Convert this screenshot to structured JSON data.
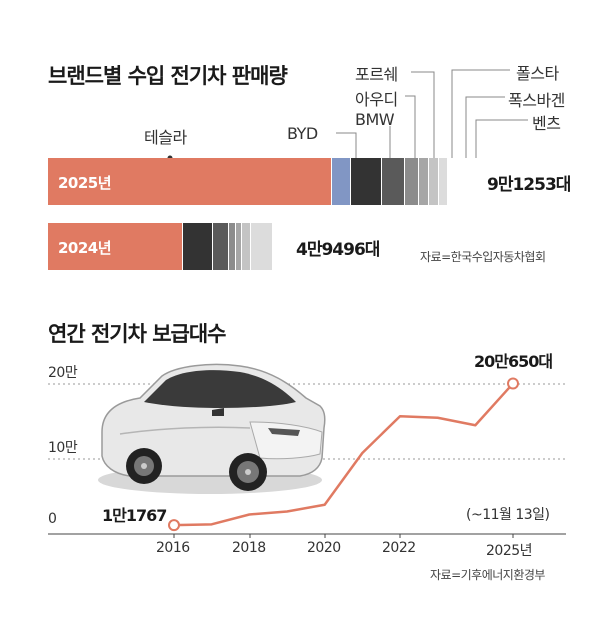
{
  "chart_data": [
    {
      "type": "bar",
      "title": "브랜드별 수입 전기차 판매량",
      "categories": [
        "2025년",
        "2024년"
      ],
      "brand_labels": [
        "테슬라",
        "BYD",
        "BMW",
        "아우디",
        "포르쉐",
        "폭스바겐",
        "폴스타",
        "벤츠"
      ],
      "totals": [
        "9만1253대",
        "4만9496대"
      ],
      "series": [
        {
          "name": "테슬라",
          "color": "#e07a62",
          "values": [
            59916,
            28498
          ]
        },
        {
          "name": "BYD",
          "color": "#8196c4",
          "values": [
            3883,
            0
          ]
        },
        {
          "name": "BMW",
          "color": "#333333",
          "values": [
            6578,
            6360
          ]
        },
        {
          "name": "아우디",
          "color": "#5a5a5a",
          "values": [
            4828,
            3280
          ]
        },
        {
          "name": "포르쉐",
          "color": "#8c8c8c",
          "values": [
            2963,
            1580
          ]
        },
        {
          "name": "폭스바겐",
          "color": "#a6a6a6",
          "values": [
            2190,
            1250
          ]
        },
        {
          "name": "폴스타",
          "color": "#c4c4c4",
          "values": [
            1990,
            1790
          ]
        },
        {
          "name": "벤츠",
          "color": "#dcdcdc",
          "values": [
            1900,
            4700
          ]
        }
      ],
      "source": "자료=한국수입자동차협회"
    },
    {
      "type": "line",
      "title": "연간 전기차 보급대수",
      "x": [
        2016,
        2017,
        2018,
        2019,
        2020,
        2021,
        2022,
        2023,
        2024,
        2025
      ],
      "values": [
        11767,
        12900,
        26000,
        30000,
        39000,
        108000,
        157000,
        155000,
        145000,
        200650
      ],
      "x_ticks": [
        "2016",
        "2018",
        "2020",
        "2022",
        "2025년"
      ],
      "y_ticks": [
        "0",
        "10만",
        "20만"
      ],
      "ylim": [
        0,
        220000
      ],
      "start_label": "1만1767",
      "end_label": "20만650대",
      "note": "(~11월 13일)",
      "source": "자료=기후에너지환경부",
      "line_color": "#e07a62"
    }
  ]
}
